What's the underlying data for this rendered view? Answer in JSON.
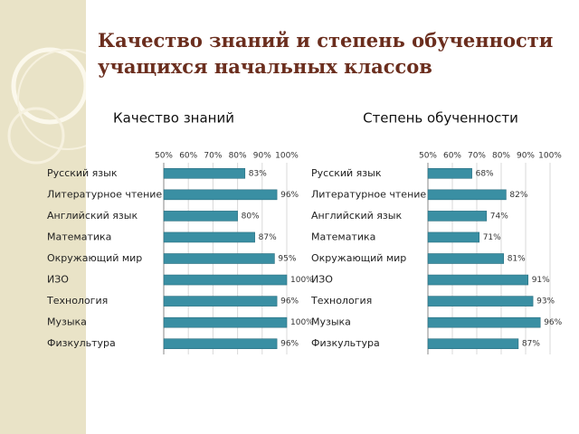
{
  "title": "Качество знаний и степень обученности учащихся начальных классов",
  "chart_data": [
    {
      "type": "bar",
      "orientation": "horizontal",
      "title": "Качество знаний",
      "categories": [
        "Русский язык",
        "Литературное чтение",
        "Английский язык",
        "Математика",
        "Окружающий мир",
        "ИЗО",
        "Технология",
        "Музыка",
        "Физкультура"
      ],
      "values": [
        83,
        96,
        80,
        87,
        95,
        100,
        96,
        100,
        96
      ],
      "value_labels": [
        "83%",
        "96%",
        "80%",
        "87%",
        "95%",
        "100%",
        "96%",
        "100%",
        "96%"
      ],
      "color": "#3a8fa3",
      "xlim": [
        50,
        100
      ],
      "xticks": [
        {
          "value": 50,
          "label": "50%"
        },
        {
          "value": 60,
          "label": "60%"
        },
        {
          "value": 70,
          "label": "70%"
        },
        {
          "value": 80,
          "label": "80%"
        },
        {
          "value": 90,
          "label": "90%"
        },
        {
          "value": 100,
          "label": "100%"
        }
      ],
      "grid": true
    },
    {
      "type": "bar",
      "orientation": "horizontal",
      "title": "Степень обученности",
      "categories": [
        "Русский язык",
        "Литературное чтение",
        "Английский язык",
        "Математика",
        "Окружающий мир",
        "ИЗО",
        "Технология",
        "Музыка",
        "Физкультура"
      ],
      "values": [
        68,
        82,
        74,
        71,
        81,
        91,
        93,
        96,
        87
      ],
      "value_labels": [
        "68%",
        "82%",
        "74%",
        "71%",
        "81%",
        "91%",
        "93%",
        "96%",
        "87%"
      ],
      "color": "#3a8fa3",
      "xlim": [
        50,
        100
      ],
      "xticks": [
        {
          "value": 50,
          "label": "50%"
        },
        {
          "value": 60,
          "label": "60%"
        },
        {
          "value": 70,
          "label": "70%"
        },
        {
          "value": 80,
          "label": "80%"
        },
        {
          "value": 90,
          "label": "90%"
        },
        {
          "value": 100,
          "label": "100%"
        }
      ],
      "grid": true
    }
  ]
}
